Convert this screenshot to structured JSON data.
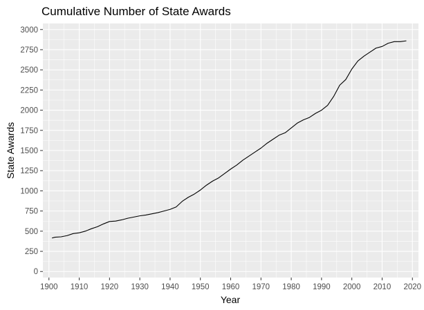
{
  "chart_data": {
    "type": "line",
    "title": "Cumulative Number of State Awards",
    "xlabel": "Year",
    "ylabel": "State Awards",
    "xlim": [
      1898,
      2022
    ],
    "ylim": [
      -75,
      3075
    ],
    "x_ticks": [
      1900,
      1910,
      1920,
      1930,
      1940,
      1950,
      1960,
      1970,
      1980,
      1990,
      2000,
      2010,
      2020
    ],
    "x_tick_labels": [
      "1900",
      "1910",
      "1920",
      "1930",
      "1940",
      "1950",
      "1960",
      "1970",
      "1980",
      "1990",
      "2000",
      "2010",
      "2020"
    ],
    "y_ticks": [
      0,
      250,
      500,
      750,
      1000,
      1250,
      1500,
      1750,
      2000,
      2250,
      2500,
      2750,
      3000
    ],
    "y_tick_labels": [
      "0",
      "250",
      "500",
      "750",
      "1000",
      "1250",
      "1500",
      "1750",
      "2000",
      "2250",
      "2500",
      "2750",
      "3000"
    ],
    "grid": true,
    "legend": "none",
    "colors": {
      "panel": "#EBEBEB",
      "grid_major": "#FFFFFF",
      "line": "#000000",
      "tick": "#333333"
    },
    "series": [
      {
        "x": [
          1901,
          1902,
          1904,
          1906,
          1908,
          1910,
          1912,
          1914,
          1916,
          1918,
          1920,
          1922,
          1924,
          1926,
          1928,
          1930,
          1932,
          1934,
          1936,
          1938,
          1940,
          1942,
          1944,
          1946,
          1948,
          1950,
          1952,
          1954,
          1956,
          1958,
          1960,
          1962,
          1964,
          1966,
          1968,
          1970,
          1972,
          1974,
          1976,
          1978,
          1980,
          1982,
          1984,
          1986,
          1988,
          1990,
          1992,
          1994,
          1996,
          1998,
          2000,
          2002,
          2004,
          2006,
          2008,
          2010,
          2012,
          2014,
          2016,
          2018
        ],
        "values": [
          415,
          425,
          430,
          445,
          470,
          480,
          500,
          530,
          555,
          590,
          620,
          625,
          640,
          660,
          675,
          690,
          700,
          715,
          730,
          750,
          770,
          800,
          870,
          920,
          960,
          1010,
          1070,
          1120,
          1160,
          1215,
          1270,
          1320,
          1380,
          1430,
          1480,
          1530,
          1590,
          1640,
          1690,
          1720,
          1780,
          1840,
          1880,
          1910,
          1960,
          2000,
          2060,
          2170,
          2310,
          2380,
          2510,
          2610,
          2670,
          2720,
          2770,
          2790,
          2830,
          2850,
          2850,
          2860
        ]
      }
    ]
  }
}
